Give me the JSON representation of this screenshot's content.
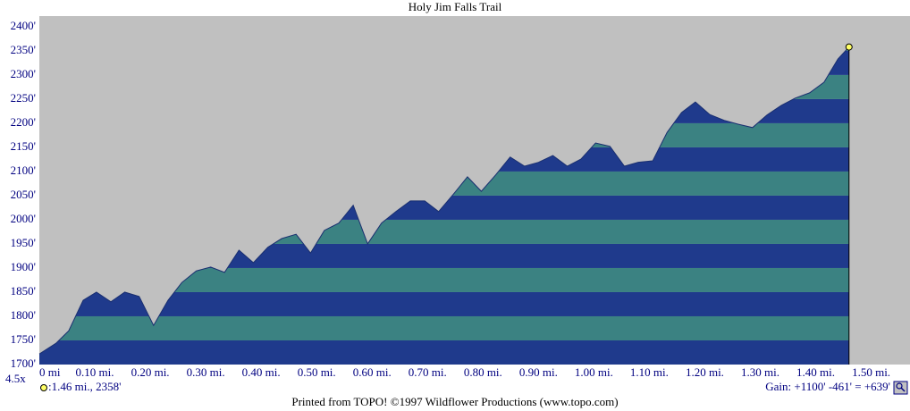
{
  "chart_data": {
    "type": "area",
    "title": "Holy Jim Falls Trail",
    "zoom_label": "4.5x",
    "readout": ":1.46 mi., 2358'",
    "gain": "Gain: +1100' -461' = +639'",
    "footer": "Printed from TOPO! ©1997 Wildflower Productions (www.topo.com)",
    "band_colors": [
      "#1f3a8c",
      "#3b8282"
    ],
    "background": "#c0c0c0",
    "marker_color": "#ffff66",
    "grid": false,
    "x": [
      0,
      0.03,
      0.053,
      0.079,
      0.103,
      0.129,
      0.154,
      0.18,
      0.206,
      0.232,
      0.257,
      0.283,
      0.309,
      0.334,
      0.36,
      0.386,
      0.412,
      0.437,
      0.463,
      0.489,
      0.514,
      0.54,
      0.566,
      0.592,
      0.617,
      0.643,
      0.669,
      0.695,
      0.72,
      0.746,
      0.772,
      0.797,
      0.823,
      0.849,
      0.875,
      0.9,
      0.926,
      0.952,
      0.977,
      1.003,
      1.029,
      1.055,
      1.08,
      1.106,
      1.132,
      1.158,
      1.183,
      1.209,
      1.235,
      1.26,
      1.286,
      1.312,
      1.338,
      1.363,
      1.389,
      1.415,
      1.44,
      1.46
    ],
    "series": [
      {
        "values": [
          1722,
          1744,
          1770,
          1833,
          1850,
          1830,
          1850,
          1841,
          1781,
          1833,
          1870,
          1894,
          1902,
          1891,
          1937,
          1911,
          1943,
          1961,
          1970,
          1931,
          1978,
          1993,
          2030,
          1950,
          1993,
          2017,
          2039,
          2039,
          2017,
          2052,
          2089,
          2059,
          2093,
          2130,
          2111,
          2119,
          2133,
          2111,
          2126,
          2159,
          2152,
          2111,
          2119,
          2122,
          2181,
          2222,
          2244,
          2218,
          2206,
          2198,
          2191,
          2217,
          2237,
          2252,
          2263,
          2285,
          2333,
          2358
        ]
      }
    ],
    "xlim": [
      0,
      1.57
    ],
    "ylim": [
      1700,
      2422
    ],
    "xticks": [
      {
        "value": 0,
        "label": "0 mi"
      },
      {
        "value": 0.1,
        "label": "0.10 mi."
      },
      {
        "value": 0.2,
        "label": "0.20 mi."
      },
      {
        "value": 0.3,
        "label": "0.30 mi."
      },
      {
        "value": 0.4,
        "label": "0.40 mi."
      },
      {
        "value": 0.5,
        "label": "0.50 mi."
      },
      {
        "value": 0.6,
        "label": "0.60 mi."
      },
      {
        "value": 0.7,
        "label": "0.70 mi."
      },
      {
        "value": 0.8,
        "label": "0.80 mi."
      },
      {
        "value": 0.9,
        "label": "0.90 mi."
      },
      {
        "value": 1,
        "label": "1.00 mi."
      },
      {
        "value": 1.1,
        "label": "1.10 mi."
      },
      {
        "value": 1.2,
        "label": "1.20 mi."
      },
      {
        "value": 1.3,
        "label": "1.30 mi."
      },
      {
        "value": 1.4,
        "label": "1.40 mi."
      },
      {
        "value": 1.5,
        "label": "1.50 mi."
      }
    ],
    "yticks": [
      {
        "value": 1700,
        "label": "1700'"
      },
      {
        "value": 1750,
        "label": "1750'"
      },
      {
        "value": 1800,
        "label": "1800'"
      },
      {
        "value": 1850,
        "label": "1850'"
      },
      {
        "value": 1900,
        "label": "1900'"
      },
      {
        "value": 1950,
        "label": "1950'"
      },
      {
        "value": 2000,
        "label": "2000'"
      },
      {
        "value": 2050,
        "label": "2050'"
      },
      {
        "value": 2100,
        "label": "2100'"
      },
      {
        "value": 2150,
        "label": "2150'"
      },
      {
        "value": 2200,
        "label": "2200'"
      },
      {
        "value": 2250,
        "label": "2250'"
      },
      {
        "value": 2300,
        "label": "2300'"
      },
      {
        "value": 2350,
        "label": "2350'"
      },
      {
        "value": 2400,
        "label": "2400'"
      }
    ]
  }
}
